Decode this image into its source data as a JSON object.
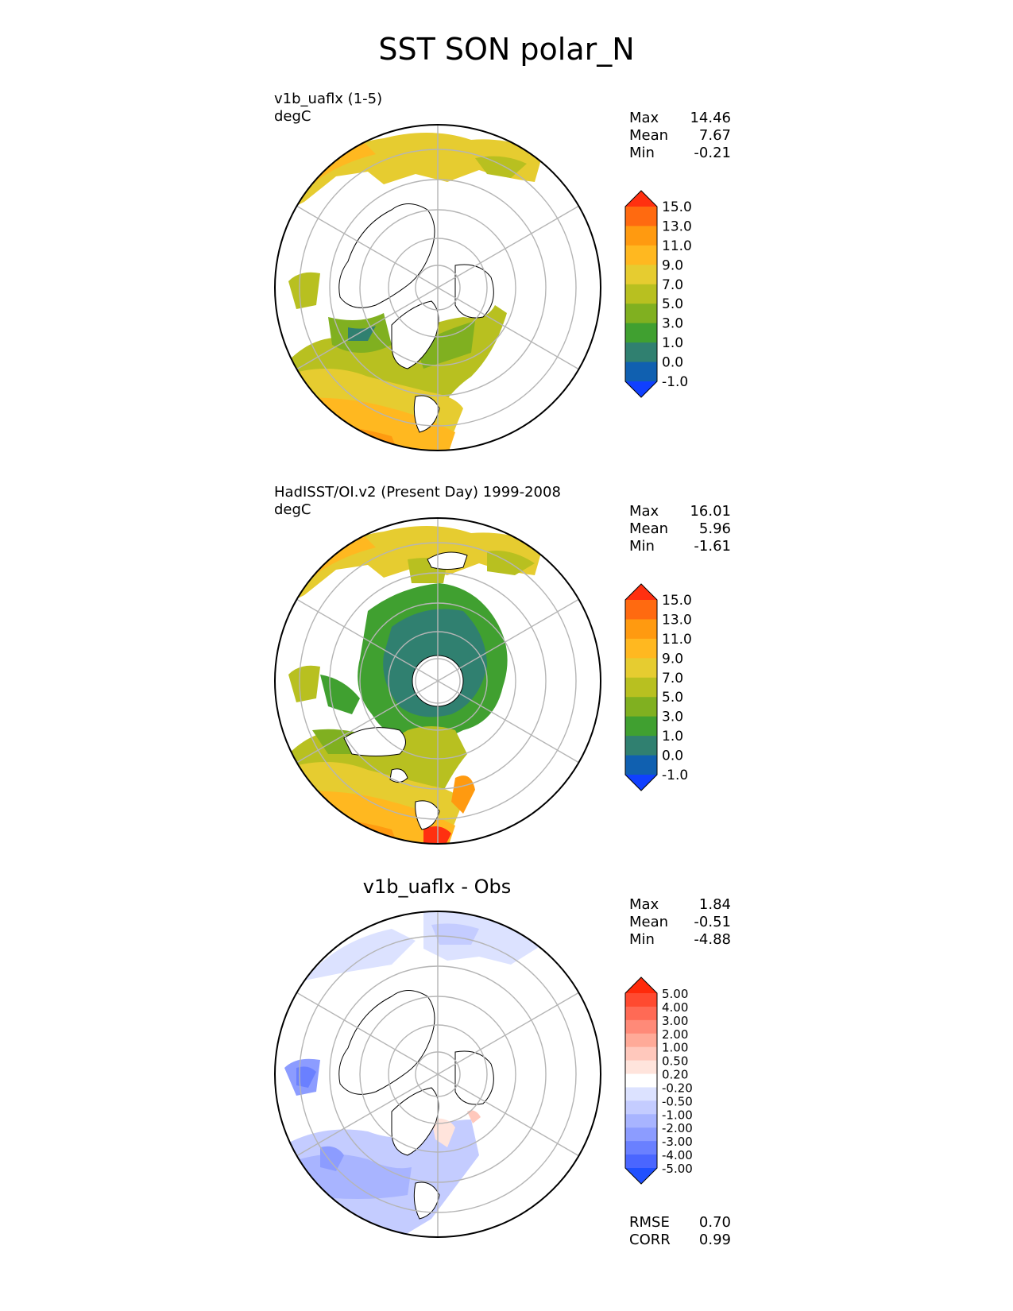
{
  "title": "SST SON polar_N",
  "panels": [
    {
      "id": "test",
      "title_line1": "v1b_uaflx (1-5)",
      "title_line2": "degC",
      "stats": [
        [
          "Max",
          "14.46"
        ],
        [
          "Mean",
          "7.67"
        ],
        [
          "Min",
          "-0.21"
        ]
      ],
      "colorbar": {
        "labels": [
          "15.0",
          "13.0",
          "11.0",
          "9.0",
          "7.0",
          "5.0",
          "3.0",
          "1.0",
          "0.0",
          "-1.0"
        ],
        "colors": [
          "#ff3010",
          "#ff6a10",
          "#ff9a10",
          "#ffb820",
          "#e6cc30",
          "#b8c020",
          "#80b020",
          "#40a030",
          "#308070",
          "#1060b0",
          "#1040ff"
        ]
      }
    },
    {
      "id": "obs",
      "title_line1": "HadISST/OI.v2 (Present Day) 1999-2008",
      "title_line2": "degC",
      "stats": [
        [
          "Max",
          "16.01"
        ],
        [
          "Mean",
          "5.96"
        ],
        [
          "Min",
          "-1.61"
        ]
      ],
      "colorbar": {
        "labels": [
          "15.0",
          "13.0",
          "11.0",
          "9.0",
          "7.0",
          "5.0",
          "3.0",
          "1.0",
          "0.0",
          "-1.0"
        ],
        "colors": [
          "#ff3010",
          "#ff6a10",
          "#ff9a10",
          "#ffb820",
          "#e6cc30",
          "#b8c020",
          "#80b020",
          "#40a030",
          "#308070",
          "#1060b0",
          "#1040ff"
        ]
      }
    },
    {
      "id": "diff",
      "title_center": "v1b_uaflx - Obs",
      "stats": [
        [
          "Max",
          "1.84"
        ],
        [
          "Mean",
          "-0.51"
        ],
        [
          "Min",
          "-4.88"
        ]
      ],
      "colorbar": {
        "labels": [
          "5.00",
          "4.00",
          "3.00",
          "2.00",
          "1.00",
          "0.50",
          "0.20",
          "-0.20",
          "-0.50",
          "-1.00",
          "-2.00",
          "-3.00",
          "-4.00",
          "-5.00"
        ],
        "colors": [
          "#ff2a0a",
          "#ff4a30",
          "#ff6a55",
          "#ff8a78",
          "#ffaa98",
          "#ffc8bc",
          "#ffe4dc",
          "#ffffff",
          "#dce2ff",
          "#c4ccff",
          "#a8b4ff",
          "#8c9cff",
          "#6a80ff",
          "#4a66ff",
          "#2050ff"
        ]
      }
    }
  ],
  "footer_stats": [
    [
      "RMSE",
      "0.70"
    ],
    [
      "CORR",
      "0.99"
    ]
  ]
}
